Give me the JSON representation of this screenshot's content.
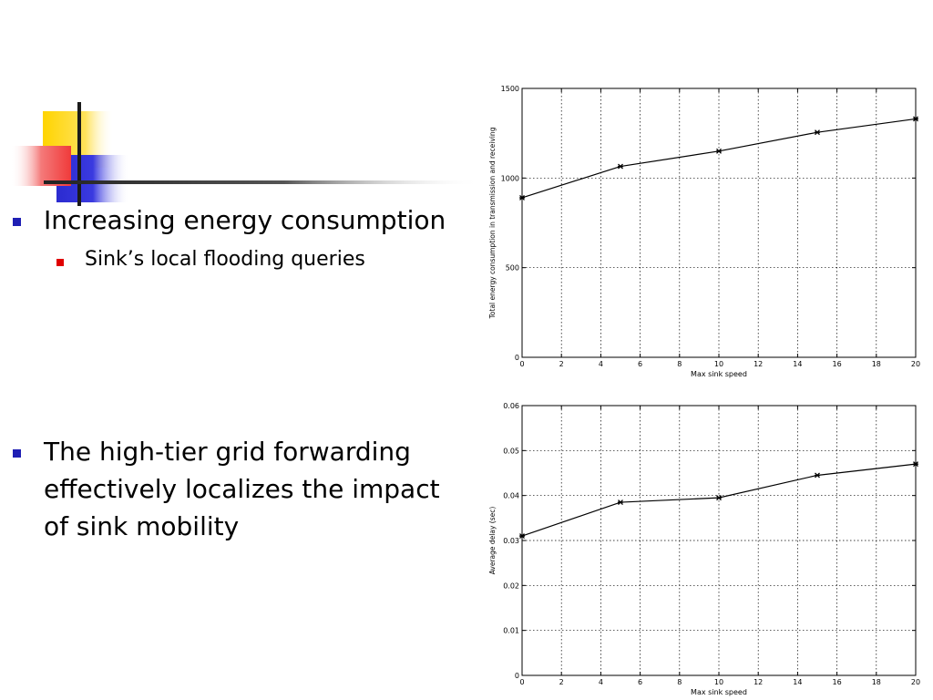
{
  "slide": {
    "bullet1": "Increasing energy consumption",
    "sub_bullet1": "Sink’s local flooding queries",
    "bullet2": "The high-tier grid forwarding effectively localizes the impact of sink mobility"
  },
  "colors": {
    "bullet_main": "#1f1fb4",
    "bullet_sub": "#e00000",
    "deco_yellow": "#ffd400",
    "deco_red": "#f03a3a",
    "deco_blue": "#2b2bd0"
  },
  "chart_data": [
    {
      "type": "line",
      "title": "",
      "xlabel": "Max sink speed",
      "ylabel": "Total energy consumption in transmission and receiving",
      "x": [
        0,
        5,
        10,
        15,
        20
      ],
      "values": [
        890,
        1065,
        1150,
        1255,
        1330
      ],
      "xlim": [
        0,
        20
      ],
      "ylim": [
        0,
        1500
      ],
      "xticks": [
        "0",
        "2",
        "4",
        "6",
        "8",
        "10",
        "12",
        "14",
        "16",
        "18",
        "20"
      ],
      "yticks": [
        "0",
        "500",
        "1000",
        "1500"
      ],
      "grid": true
    },
    {
      "type": "line",
      "title": "",
      "xlabel": "Max sink speed",
      "ylabel": "Average delay (sec)",
      "x": [
        0,
        5,
        10,
        15,
        20
      ],
      "values": [
        0.031,
        0.0385,
        0.0395,
        0.0445,
        0.047
      ],
      "xlim": [
        0,
        20
      ],
      "ylim": [
        0,
        0.06
      ],
      "xticks": [
        "0",
        "2",
        "4",
        "6",
        "8",
        "10",
        "12",
        "14",
        "16",
        "18",
        "20"
      ],
      "yticks": [
        "0",
        "0.01",
        "0.02",
        "0.03",
        "0.04",
        "0.05",
        "0.06"
      ],
      "grid": true
    }
  ]
}
